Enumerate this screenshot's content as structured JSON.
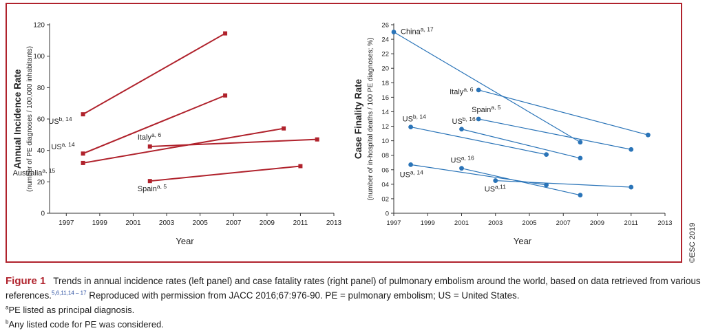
{
  "copyright": "©ESC 2019",
  "caption": {
    "label": "Figure 1",
    "text": "Trends in annual incidence rates (left panel) and case fatality rates (right panel) of pulmonary embolism around the world, based on data retrieved from various references.",
    "refs": "5,6,11,14 – 17",
    "text2": " Reproduced with permission from JACC 2016;67:976-90. PE = pulmonary embolism; US = United States."
  },
  "footnotes": [
    {
      "mark": "a",
      "text": "PE listed as principal diagnosis."
    },
    {
      "mark": "b",
      "text": "Any listed code for PE was considered."
    }
  ],
  "colors": {
    "left": "#b0222c",
    "right": "#2a74b8",
    "frame": "#b0222c"
  },
  "chart_data": [
    {
      "type": "line",
      "marker": "square",
      "title": "",
      "xlabel": "Year",
      "ylabel": "Annual Incidence Rate",
      "ylabel2": "(number of PE diagnoses / 100,000 inhabitants)",
      "xlim": [
        1996,
        2013
      ],
      "ylim": [
        0,
        120
      ],
      "xticks": [
        "1997",
        "1999",
        "2001",
        "2003",
        "2005",
        "2007",
        "2009",
        "2011",
        "2013"
      ],
      "yticks": [
        "0",
        "20",
        "40",
        "60",
        "80",
        "100",
        "120"
      ],
      "series": [
        {
          "name": "US",
          "sup": "b, 14",
          "x": [
            1998,
            2006.5
          ],
          "y": [
            63,
            114.5
          ]
        },
        {
          "name": "US",
          "sup": "a, 14",
          "x": [
            1998,
            2006.5
          ],
          "y": [
            38,
            75
          ]
        },
        {
          "name": "Australia",
          "sup": "a, 15",
          "x": [
            1998,
            2010
          ],
          "y": [
            32,
            54
          ]
        },
        {
          "name": "Italy",
          "sup": "a, 6",
          "x": [
            2002,
            2012
          ],
          "y": [
            42.5,
            47
          ]
        },
        {
          "name": "Spain",
          "sup": "a, 5",
          "x": [
            2002,
            2011
          ],
          "y": [
            20.5,
            30
          ]
        }
      ]
    },
    {
      "type": "line",
      "marker": "circle",
      "title": "",
      "xlabel": "Year",
      "ylabel": "Case Finality Rate",
      "ylabel2": "(number of in-hospital deaths / 100 PE diagnoses; %)",
      "xlim": [
        1997,
        2013
      ],
      "ylim": [
        0,
        26
      ],
      "xticks": [
        "1997",
        "1999",
        "2001",
        "2003",
        "2005",
        "2007",
        "2009",
        "2011",
        "2013"
      ],
      "yticks": [
        "0",
        "02",
        "04",
        "06",
        "08",
        "10",
        "12",
        "14",
        "16",
        "18",
        "20",
        "22",
        "24",
        "26"
      ],
      "series": [
        {
          "name": "China",
          "sup": "a, 17",
          "x": [
            1997,
            2008
          ],
          "y": [
            25,
            9.8
          ]
        },
        {
          "name": "Italy",
          "sup": "a, 6",
          "x": [
            2002,
            2012
          ],
          "y": [
            17,
            10.8
          ]
        },
        {
          "name": "Spain",
          "sup": "a, 5",
          "x": [
            2002,
            2011
          ],
          "y": [
            13,
            8.8
          ]
        },
        {
          "name": "US",
          "sup": "b, 14",
          "x": [
            1998,
            2006
          ],
          "y": [
            11.9,
            8.1
          ]
        },
        {
          "name": "US",
          "sup": "b, 16",
          "x": [
            2001,
            2008
          ],
          "y": [
            11.6,
            7.6
          ]
        },
        {
          "name": "US",
          "sup": "a, 16",
          "x": [
            2001,
            2008
          ],
          "y": [
            6.2,
            2.5
          ]
        },
        {
          "name": "US",
          "sup": "a, 14",
          "x": [
            1998,
            2006
          ],
          "y": [
            6.7,
            3.9
          ]
        },
        {
          "name": "US",
          "sup": "a,11",
          "x": [
            2003,
            2011
          ],
          "y": [
            4.5,
            3.6
          ]
        }
      ]
    }
  ]
}
